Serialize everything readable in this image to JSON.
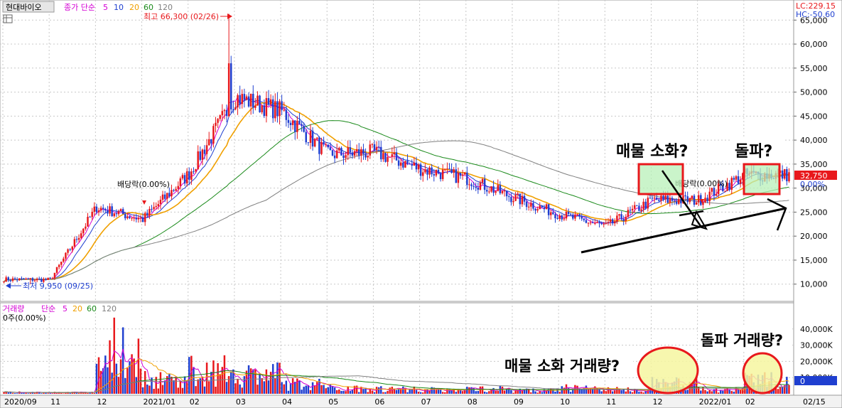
{
  "price_panel": {
    "stock_name": "현대바이오",
    "legend_label": "종가 단순",
    "ma_periods": [
      {
        "label": "5",
        "color": "#d400d4"
      },
      {
        "label": "10",
        "color": "#1f3fd0"
      },
      {
        "label": "20",
        "color": "#f0a000"
      },
      {
        "label": "60",
        "color": "#1a8a1a"
      },
      {
        "label": "120",
        "color": "#808080"
      }
    ],
    "top_right": {
      "lc": "LC:229.15",
      "hc": "HC:-50.60"
    },
    "high_annotation": "최고 66,300 (02/26)",
    "low_annotation": "최저 9,950 (09/25)",
    "dividend_1": "배당락(0.00%)",
    "dividend_2": "배당락(0.00%)",
    "current_price_tag": "32,750",
    "current_pct": "0.00%",
    "y_ticks": [
      "10,000",
      "15,000",
      "20,000",
      "25,000",
      "30,000",
      "35,000",
      "40,000",
      "45,000",
      "50,000",
      "55,000",
      "60,000",
      "65,000"
    ],
    "annotation_selloff": "매물 소화?",
    "annotation_breakout": "돌파?"
  },
  "volume_panel": {
    "legend_label": "거래량",
    "legend_sub": "단순",
    "ma_periods": [
      {
        "label": "5",
        "color": "#d400d4"
      },
      {
        "label": "20",
        "color": "#f0a000"
      },
      {
        "label": "60",
        "color": "#1a8a1a"
      },
      {
        "label": "120",
        "color": "#808080"
      }
    ],
    "current_line": "0주(0.00%)",
    "y_ticks": [
      "10,000K",
      "20,000K",
      "30,000K",
      "40,000K"
    ],
    "tag_0": "0",
    "annotation_selloff_volume": "매물 소화 거래량?",
    "annotation_breakout_volume": "돌파 거래량?"
  },
  "x_axis": {
    "labels": [
      "2020/09",
      "11",
      "12",
      "2021/01",
      "02",
      "03",
      "04",
      "05",
      "06",
      "07",
      "08",
      "09",
      "10",
      "11",
      "12",
      "2022/01",
      "02",
      "02/15"
    ]
  },
  "colors": {
    "up": "#e8181c",
    "down": "#1f3fd0",
    "grid": "#c8c8c8",
    "annotation_red": "#e8181c",
    "annotation_green_fill": "#b8f0b8",
    "annotation_yellow_fill": "#f6f6a0"
  },
  "chart_data": {
    "type": "candlestick",
    "price_range": [
      7000,
      68000
    ],
    "volume_range": [
      0,
      50000
    ],
    "volume_unit": "K",
    "months": [
      {
        "label": "2020/09",
        "close_mid": 11000,
        "vol": 900
      },
      {
        "label": "11",
        "close_mid": 10900,
        "vol": 800
      },
      {
        "label": "12",
        "close_mid": 26000,
        "vol": 22000
      },
      {
        "label": "2021/01",
        "close_mid": 23500,
        "vol": 9000
      },
      {
        "label": "02",
        "close_mid": 33000,
        "vol": 14000
      },
      {
        "label": "03",
        "close_mid": 49000,
        "vol": 12000
      },
      {
        "label": "04",
        "close_mid": 46000,
        "vol": 6000
      },
      {
        "label": "05",
        "close_mid": 37000,
        "vol": 3500
      },
      {
        "label": "06",
        "close_mid": 37500,
        "vol": 3000
      },
      {
        "label": "07",
        "close_mid": 34000,
        "vol": 2500
      },
      {
        "label": "08",
        "close_mid": 32000,
        "vol": 3000
      },
      {
        "label": "09",
        "close_mid": 28000,
        "vol": 2000
      },
      {
        "label": "10",
        "close_mid": 24500,
        "vol": 3500
      },
      {
        "label": "11",
        "close_mid": 22000,
        "vol": 2500
      },
      {
        "label": "12",
        "close_mid": 27500,
        "vol": 6500
      },
      {
        "label": "2022/01",
        "close_mid": 27500,
        "vol": 2500
      },
      {
        "label": "02",
        "close_mid": 32750,
        "vol": 8000
      }
    ],
    "high": {
      "value": 66300,
      "date": "02/26"
    },
    "low": {
      "value": 9950,
      "date": "09/25"
    },
    "last_close": 32750
  }
}
